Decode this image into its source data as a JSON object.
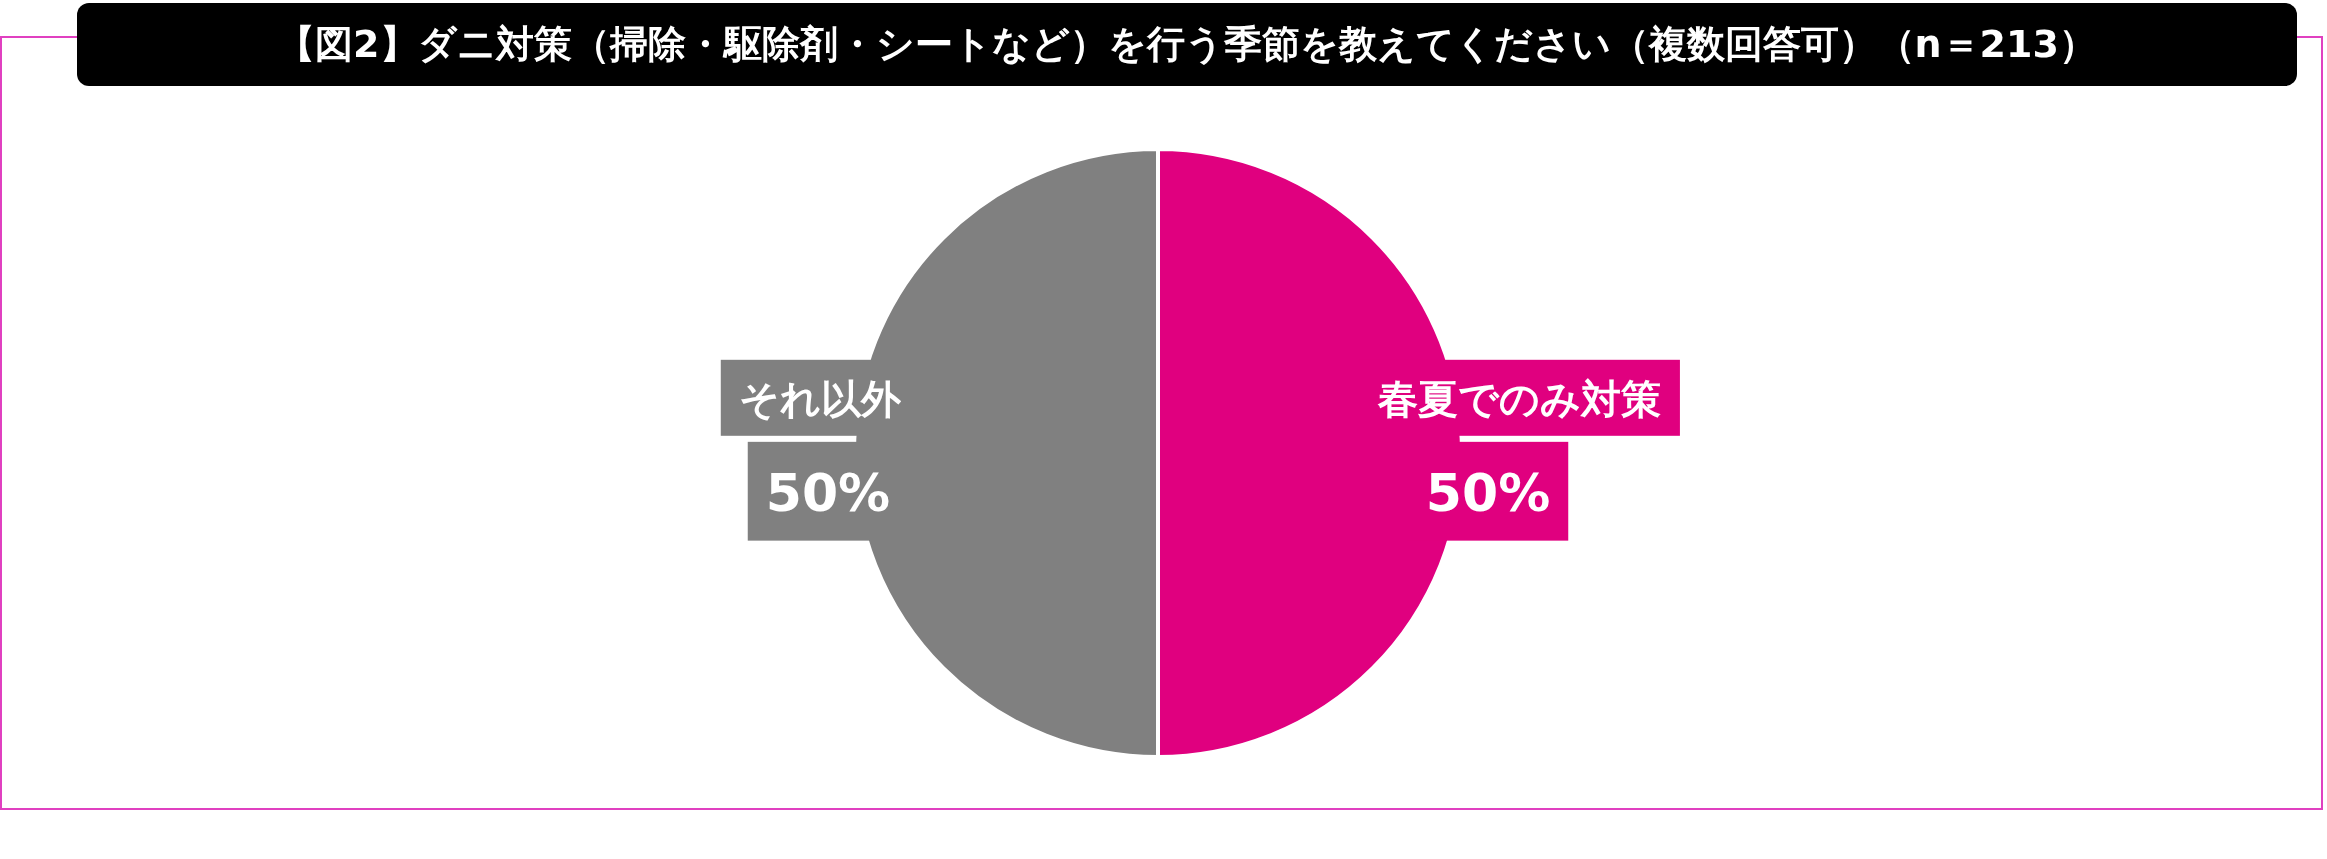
{
  "chart_data": {
    "type": "pie",
    "title": "【図2】ダニ対策（掃除・駆除剤・シートなど）を行う季節を教えてください（複数回答可）（n＝213）",
    "categories": [
      "春夏でのみ対策",
      "それ以外"
    ],
    "values": [
      50,
      50
    ],
    "colors": [
      "#e0007f",
      "#808080"
    ],
    "value_labels": [
      "50%",
      "50%"
    ]
  }
}
